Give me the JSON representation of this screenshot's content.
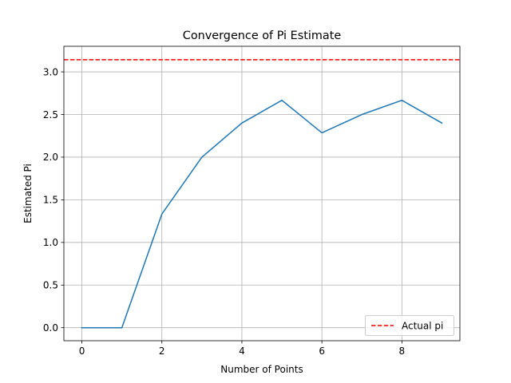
{
  "chart_data": {
    "type": "line",
    "title": "Convergence of Pi Estimate",
    "xlabel": "Number of Points",
    "ylabel": "Estimated Pi",
    "xlim": [
      -0.45,
      9.45
    ],
    "ylim": [
      -0.1524,
      3.3
    ],
    "x_ticks": [
      0,
      2,
      4,
      6,
      8
    ],
    "x_tick_labels": [
      "0",
      "2",
      "4",
      "6",
      "8"
    ],
    "y_ticks": [
      0.0,
      0.5,
      1.0,
      1.5,
      2.0,
      2.5,
      3.0
    ],
    "y_tick_labels": [
      "0.0",
      "0.5",
      "1.0",
      "1.5",
      "2.0",
      "2.5",
      "3.0"
    ],
    "grid": true,
    "legend_position": "lower-right",
    "series": [
      {
        "x": [
          0,
          1,
          2,
          3,
          4,
          5,
          6,
          7,
          8,
          9
        ],
        "values": [
          0.0,
          0.0,
          1.3333,
          2.0,
          2.4,
          2.6667,
          2.2857,
          2.5,
          2.6667,
          2.4
        ],
        "color": "#1f77b4"
      }
    ],
    "reference_lines": [
      {
        "name": "Actual pi",
        "y": 3.14159,
        "color": "#ff0000",
        "style": "dashed"
      }
    ]
  }
}
